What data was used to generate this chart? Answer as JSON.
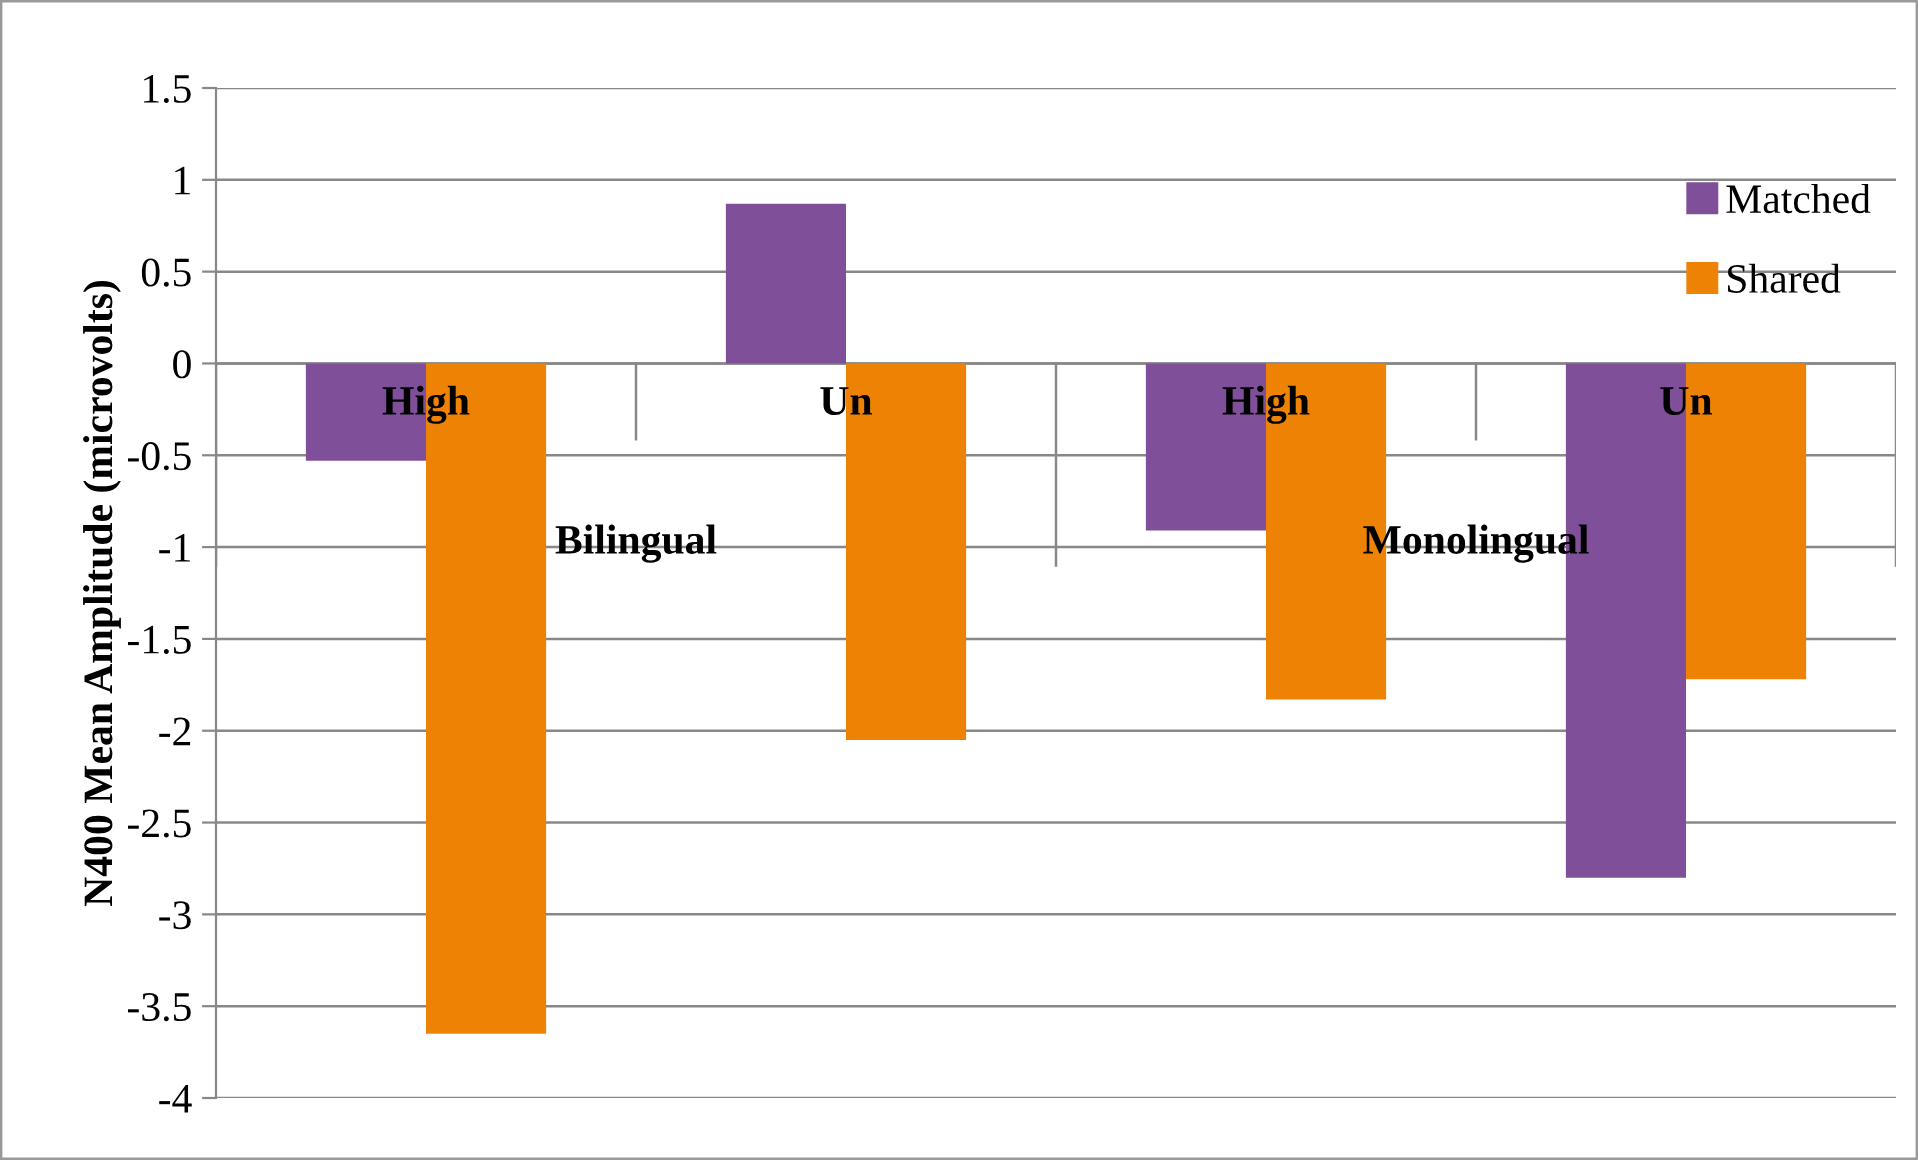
{
  "chart_data": {
    "type": "bar",
    "ylabel": "N400 Mean Amplitude (microvolts)",
    "categories": [
      "High",
      "Un",
      "High",
      "Un"
    ],
    "series": [
      {
        "name": "Matched",
        "color": "#7f4f9a",
        "values": [
          -0.53,
          0.87,
          -0.91,
          -2.8
        ]
      },
      {
        "name": "Shared",
        "color": "#ee8204",
        "values": [
          -3.65,
          -2.05,
          -1.83,
          -1.72
        ]
      }
    ],
    "annotations": [
      "Bilingual",
      "Monolingual"
    ],
    "ylim": [
      -4,
      1.5
    ],
    "yticks": [
      -4,
      -3.5,
      -3,
      -2.5,
      -2,
      -1.5,
      -1,
      -0.5,
      0,
      0.5,
      1,
      1.5
    ],
    "grid": "y",
    "legend": "top right"
  }
}
